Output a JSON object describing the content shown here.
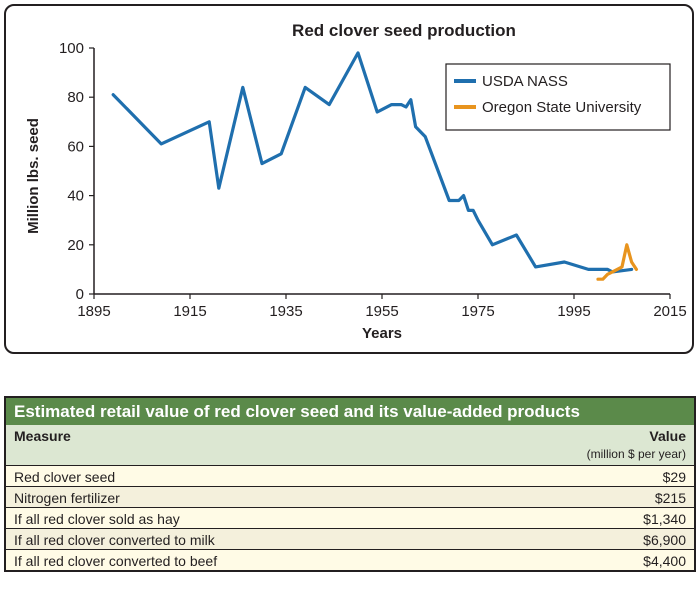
{
  "chart_data": {
    "type": "line",
    "title": "Red clover seed production",
    "xlabel": "Years",
    "ylabel": "Million lbs. seed",
    "xlim": [
      1895,
      2015
    ],
    "ylim": [
      0,
      100
    ],
    "xticks": [
      1895,
      1915,
      1935,
      1955,
      1975,
      1995,
      2015
    ],
    "yticks": [
      0,
      20,
      40,
      60,
      80,
      100
    ],
    "grid": false,
    "legend_position": "top-right",
    "series": [
      {
        "name": "USDA NASS",
        "color": "#1f6fae",
        "points": [
          [
            1899,
            81
          ],
          [
            1909,
            61
          ],
          [
            1919,
            70
          ],
          [
            1921,
            43
          ],
          [
            1926,
            84
          ],
          [
            1930,
            53
          ],
          [
            1934,
            57
          ],
          [
            1939,
            84
          ],
          [
            1944,
            77
          ],
          [
            1950,
            98
          ],
          [
            1954,
            74
          ],
          [
            1957,
            77
          ],
          [
            1959,
            77
          ],
          [
            1960,
            76
          ],
          [
            1961,
            79
          ],
          [
            1962,
            68
          ],
          [
            1964,
            64
          ],
          [
            1969,
            38
          ],
          [
            1971,
            38
          ],
          [
            1972,
            40
          ],
          [
            1973,
            34
          ],
          [
            1974,
            34
          ],
          [
            1975,
            30
          ],
          [
            1978,
            20
          ],
          [
            1983,
            24
          ],
          [
            1987,
            11
          ],
          [
            1993,
            13
          ],
          [
            1998,
            10
          ],
          [
            2002,
            10
          ],
          [
            2003,
            9
          ],
          [
            2007,
            10
          ]
        ]
      },
      {
        "name": "Oregon State University",
        "color": "#e8941e",
        "points": [
          [
            2000,
            6
          ],
          [
            2001,
            6
          ],
          [
            2002,
            8
          ],
          [
            2003,
            9
          ],
          [
            2004,
            10
          ],
          [
            2005,
            11
          ],
          [
            2006,
            20
          ],
          [
            2007,
            13
          ],
          [
            2008,
            10
          ]
        ]
      }
    ]
  },
  "table": {
    "title": "Estimated retail value of red clover seed and its value-added products",
    "header_measure": "Measure",
    "header_value": "Value",
    "header_unit": "(million $ per year)",
    "rows": [
      {
        "measure": "Red clover seed",
        "value": "$29"
      },
      {
        "measure": "Nitrogen fertilizer",
        "value": "$215"
      },
      {
        "measure": "If all red clover sold as hay",
        "value": "$1,340"
      },
      {
        "measure": "If all red clover converted to milk",
        "value": "$6,900"
      },
      {
        "measure": "If all red clover converted to beef",
        "value": "$4,400"
      }
    ]
  }
}
